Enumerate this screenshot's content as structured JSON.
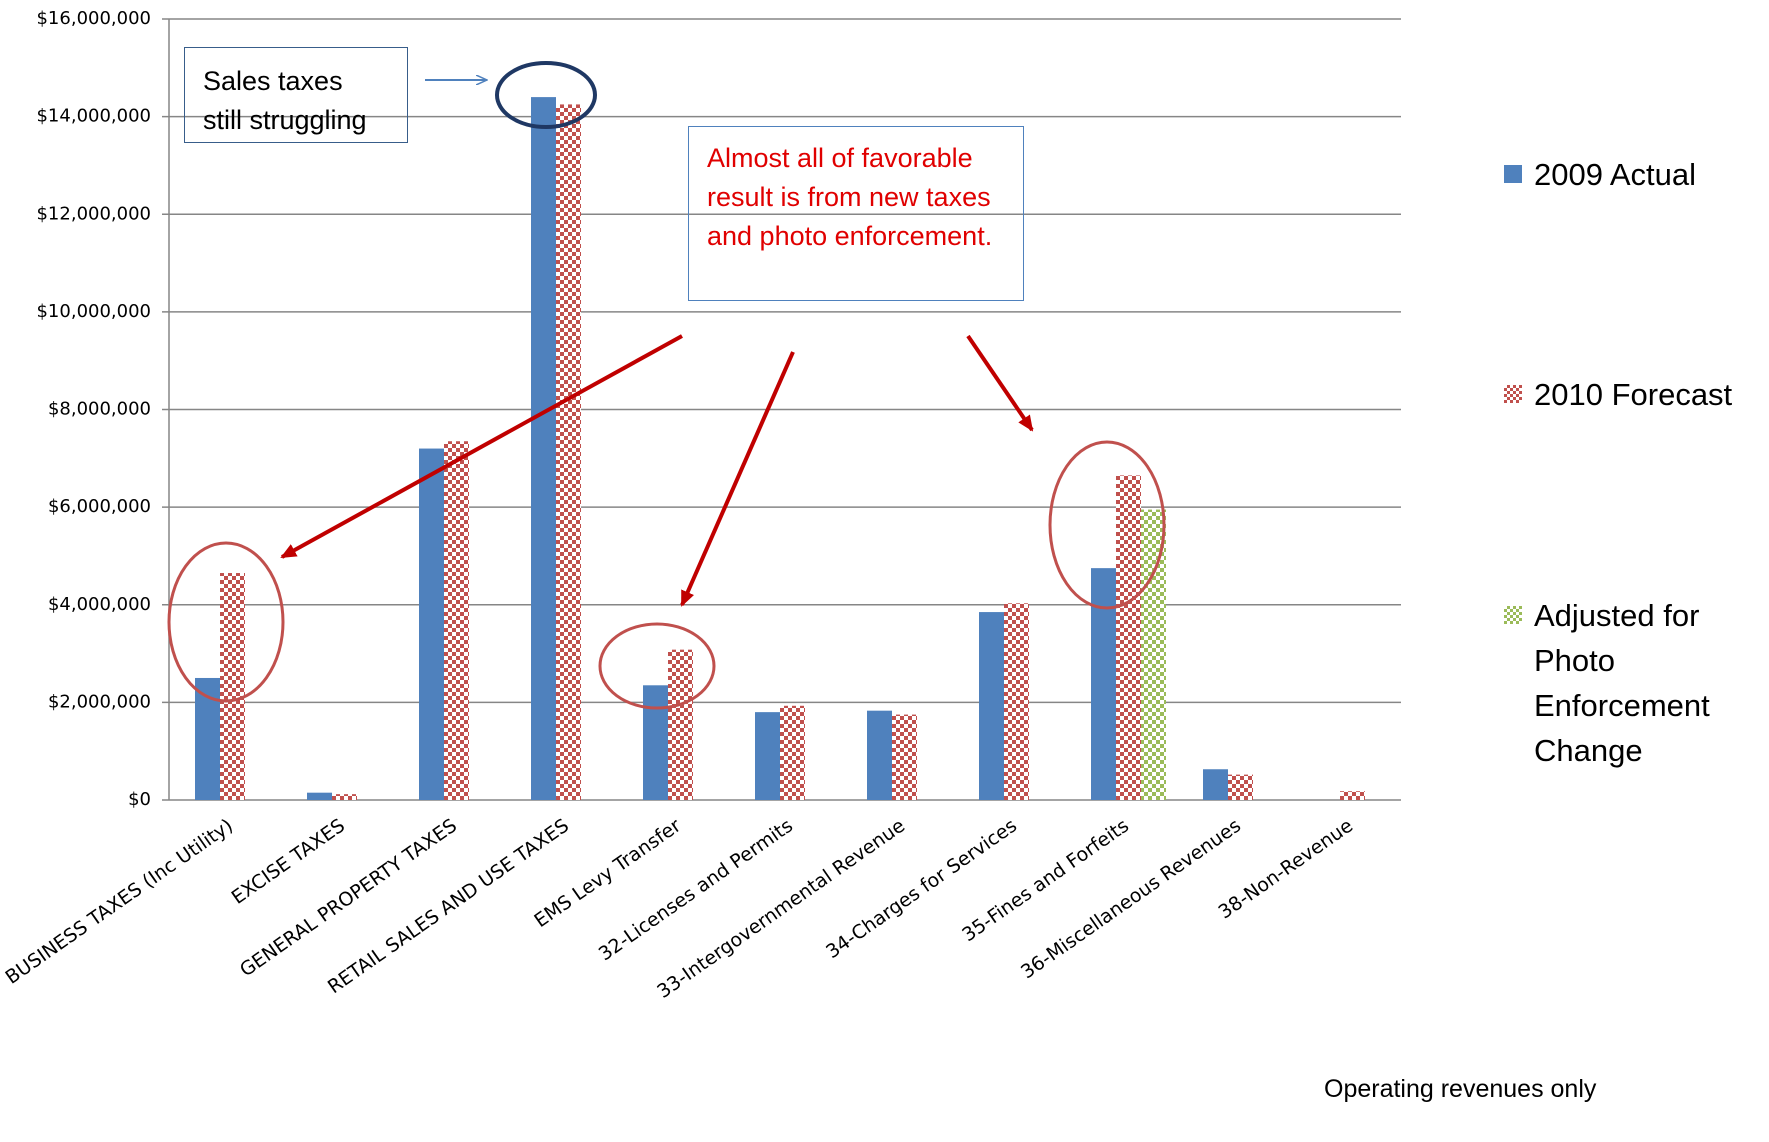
{
  "chart_data": {
    "type": "bar",
    "categories": [
      "BUSINESS TAXES (Inc Utility)",
      "EXCISE TAXES",
      "GENERAL PROPERTY TAXES",
      "RETAIL SALES AND USE TAXES",
      "EMS Levy Transfer",
      "32-Licenses and Permits",
      "33-Intergovernmental Revenue",
      "34-Charges for Services",
      "35-Fines and Forfeits",
      "36-Miscellaneous Revenues",
      "38-Non-Revenue"
    ],
    "series": [
      {
        "name": "2009 Actual",
        "color": "#4f81bd",
        "values": [
          2500000,
          150000,
          7200000,
          14400000,
          2350000,
          1800000,
          1830000,
          3850000,
          4750000,
          630000,
          null
        ]
      },
      {
        "name": "2010 Forecast",
        "color": "#c0504d",
        "values": [
          4650000,
          120000,
          7350000,
          14250000,
          3080000,
          1930000,
          1750000,
          4030000,
          6650000,
          520000,
          180000
        ]
      },
      {
        "name": "Adjusted for Photo Enforcement Change",
        "color": "#9bbb59",
        "values": [
          null,
          null,
          null,
          null,
          null,
          null,
          null,
          null,
          5950000,
          null,
          null
        ]
      }
    ],
    "ylim": [
      0,
      16000000
    ],
    "yticks": [
      {
        "value": 0,
        "label": "$0"
      },
      {
        "value": 2000000,
        "label": "$2,000,000"
      },
      {
        "value": 4000000,
        "label": "$4,000,000"
      },
      {
        "value": 6000000,
        "label": "$6,000,000"
      },
      {
        "value": 8000000,
        "label": "$8,000,000"
      },
      {
        "value": 10000000,
        "label": "$10,000,000"
      },
      {
        "value": 12000000,
        "label": "$12,000,000"
      },
      {
        "value": 14000000,
        "label": "$14,000,000"
      },
      {
        "value": 16000000,
        "label": "$16,000,000"
      }
    ],
    "grid": true,
    "legend": "right",
    "annotations": [
      "Sales taxes still struggling",
      "Almost all of favorable result is from new taxes and photo enforcement.",
      "Operating revenues only"
    ]
  }
}
